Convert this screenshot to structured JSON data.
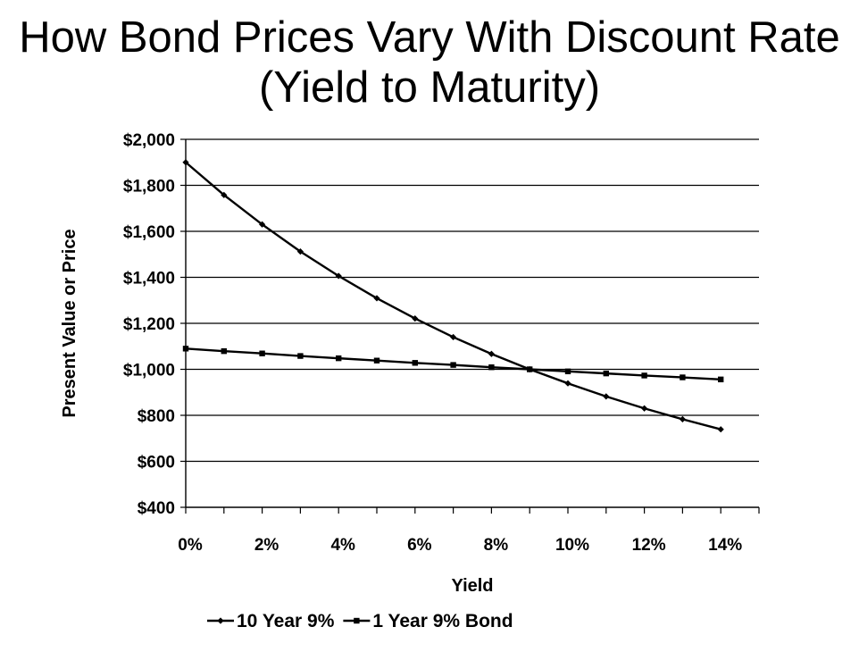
{
  "chart_data": {
    "type": "line",
    "title": "How Bond Prices Vary With Discount Rate (Yield to Maturity)",
    "xlabel": "Yield",
    "ylabel": "Present Value or Price",
    "x": [
      0,
      1,
      2,
      3,
      4,
      5,
      6,
      7,
      8,
      9,
      10,
      11,
      12,
      13,
      14
    ],
    "x_tick_values": [
      0,
      2,
      4,
      6,
      8,
      10,
      12,
      14
    ],
    "x_tick_labels": [
      "0%",
      "2%",
      "4%",
      "6%",
      "8%",
      "10%",
      "12%",
      "14%"
    ],
    "xlim": [
      0,
      15
    ],
    "y_tick_values": [
      400,
      600,
      800,
      1000,
      1200,
      1400,
      1600,
      1800,
      2000
    ],
    "y_tick_labels": [
      "$400",
      "$600",
      "$800",
      "$1,000",
      "$1,200",
      "$1,400",
      "$1,600",
      "$1,800",
      "$2,000"
    ],
    "ylim": [
      400,
      2000
    ],
    "grid": "horizontal",
    "legend_position": "bottom",
    "series": [
      {
        "name": "10 Year 9%",
        "marker": "diamond",
        "values": [
          1900,
          1758,
          1630,
          1512,
          1406,
          1309,
          1221,
          1140,
          1067,
          1000,
          939,
          882,
          830,
          783,
          739
        ]
      },
      {
        "name": "1 Year 9% Bond",
        "marker": "square",
        "values": [
          1090,
          1079,
          1069,
          1058,
          1048,
          1038,
          1028,
          1019,
          1009,
          1000,
          991,
          982,
          973,
          965,
          956
        ]
      }
    ]
  }
}
